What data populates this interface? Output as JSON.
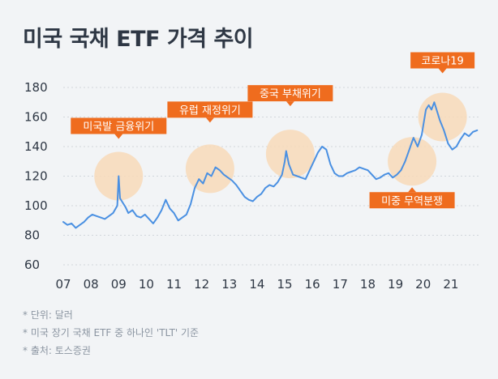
{
  "title": "미국 국채 ETF 가격 추이",
  "notes": [
    "* 단위: 달러",
    "* 미국 장기 국채 ETF 중 하나인 'TLT' 기준",
    "* 출처: 토스증권"
  ],
  "colors": {
    "line": "#4a90e2",
    "callout": "#ef6c1e",
    "highlight": "#f8d9b9",
    "grid": "#d1d6db",
    "background": "#f2f4f6"
  },
  "chart_data": {
    "type": "line",
    "title": "미국 국채 ETF 가격 추이",
    "xlabel": "",
    "ylabel": "",
    "x_ticks": [
      "07",
      "08",
      "09",
      "10",
      "11",
      "12",
      "13",
      "14",
      "15",
      "16",
      "17",
      "18",
      "19",
      "20",
      "21"
    ],
    "y_ticks": [
      60,
      80,
      100,
      120,
      140,
      160,
      180
    ],
    "xlim": [
      2007.0,
      2022.0
    ],
    "ylim": [
      60,
      180
    ],
    "grid": true,
    "legend": "none",
    "series": [
      {
        "x": [
          2007.0,
          2007.15,
          2007.3,
          2007.45,
          2007.6,
          2007.75,
          2007.9,
          2008.05,
          2008.2,
          2008.35,
          2008.5,
          2008.65,
          2008.8,
          2008.95,
          2009.0,
          2009.05,
          2009.15,
          2009.25,
          2009.35,
          2009.5,
          2009.65,
          2009.8,
          2009.95,
          2010.1,
          2010.25,
          2010.4,
          2010.55,
          2010.7,
          2010.85,
          2011.0,
          2011.15,
          2011.3,
          2011.45,
          2011.6,
          2011.75,
          2011.9,
          2012.05,
          2012.2,
          2012.35,
          2012.5,
          2012.65,
          2012.8,
          2012.95,
          2013.1,
          2013.25,
          2013.4,
          2013.55,
          2013.7,
          2013.85,
          2014.0,
          2014.15,
          2014.3,
          2014.45,
          2014.6,
          2014.75,
          2014.9,
          2015.0,
          2015.05,
          2015.15,
          2015.3,
          2015.45,
          2015.6,
          2015.75,
          2015.9,
          2016.05,
          2016.2,
          2016.35,
          2016.5,
          2016.65,
          2016.8,
          2016.95,
          2017.1,
          2017.25,
          2017.4,
          2017.55,
          2017.7,
          2017.85,
          2018.0,
          2018.15,
          2018.3,
          2018.45,
          2018.6,
          2018.75,
          2018.9,
          2019.05,
          2019.2,
          2019.35,
          2019.5,
          2019.65,
          2019.8,
          2019.95,
          2020.1,
          2020.2,
          2020.3,
          2020.4,
          2020.5,
          2020.6,
          2020.75,
          2020.9,
          2021.05,
          2021.2,
          2021.35,
          2021.5,
          2021.65,
          2021.8,
          2021.95
        ],
        "values": [
          89,
          87,
          88,
          85,
          87,
          89,
          92,
          94,
          93,
          92,
          91,
          93,
          95,
          100,
          120,
          105,
          102,
          99,
          95,
          97,
          93,
          92,
          94,
          91,
          88,
          92,
          97,
          104,
          98,
          95,
          90,
          92,
          94,
          101,
          112,
          118,
          115,
          122,
          120,
          126,
          124,
          121,
          119,
          117,
          114,
          110,
          106,
          104,
          103,
          106,
          108,
          112,
          114,
          113,
          116,
          121,
          130,
          137,
          128,
          121,
          120,
          119,
          118,
          124,
          130,
          136,
          140,
          138,
          128,
          122,
          120,
          120,
          122,
          123,
          124,
          126,
          125,
          124,
          121,
          118,
          119,
          121,
          122,
          119,
          121,
          124,
          130,
          138,
          146,
          140,
          148,
          165,
          168,
          165,
          170,
          164,
          158,
          151,
          142,
          138,
          140,
          145,
          149,
          147,
          150,
          151
        ]
      }
    ],
    "annotations": [
      {
        "label": "미국발 금융위기",
        "x": 2009.0,
        "y": 120
      },
      {
        "label": "유럽 재정위기",
        "x": 2012.3,
        "y": 125
      },
      {
        "label": "중국 부채위기",
        "x": 2015.2,
        "y": 135
      },
      {
        "label": "미중 무역분쟁",
        "x": 2019.6,
        "y": 130
      },
      {
        "label": "코로나19",
        "x": 2020.7,
        "y": 160
      }
    ]
  }
}
